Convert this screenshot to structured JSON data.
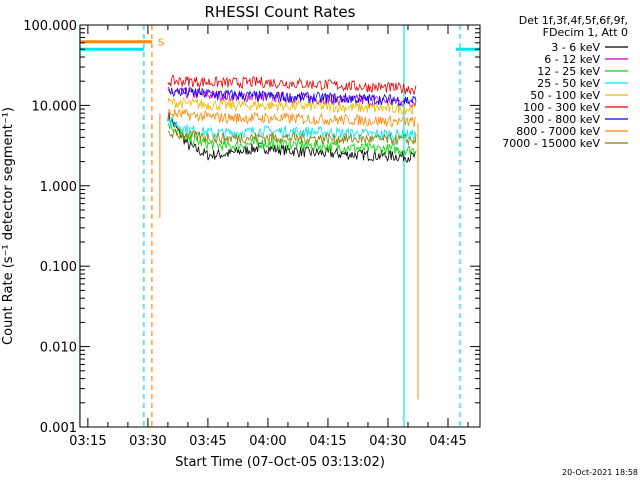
{
  "chart_data": {
    "type": "line",
    "title": "RHESSI Count Rates",
    "xlabel": "Start Time (07-Oct-05 03:13:02)",
    "ylabel": "Count Rate (s⁻¹ detector segment⁻¹)",
    "yscale": "log",
    "ylim": [
      0.001,
      100
    ],
    "xlim": [
      "03:13:02",
      "04:53:00"
    ],
    "x_ticks": [
      "03:15",
      "03:30",
      "03:45",
      "04:00",
      "04:15",
      "04:30",
      "04:45"
    ],
    "y_ticks": [
      "0.001",
      "0.010",
      "0.100",
      "1.000",
      "10.000",
      "100.000"
    ],
    "legend_header": [
      "Det 1f,3f,4f,5f,6f,9f,",
      "FDecim 1, Att 0"
    ],
    "legend_position": "right",
    "grid": false,
    "data_start": "03:35",
    "data_end": "04:37",
    "series": [
      {
        "name": "3 - 6 keV",
        "color": "#000000",
        "values": [
          7.5,
          3.2,
          2.4,
          2.5,
          3.0,
          2.6,
          2.4,
          2.3
        ],
        "x": [
          "03:35",
          "03:40",
          "03:45",
          "03:50",
          "03:58",
          "04:10",
          "04:25",
          "04:37"
        ]
      },
      {
        "name": "6 - 12 keV",
        "color": "#cc00cc",
        "values": [
          14.5,
          14.0,
          13.5,
          13.0,
          12.8,
          12.2,
          11.5,
          11.0
        ],
        "x": [
          "03:35",
          "03:40",
          "03:45",
          "03:50",
          "03:58",
          "04:10",
          "04:25",
          "04:37"
        ]
      },
      {
        "name": "12 - 25 keV",
        "color": "#00dd00",
        "values": [
          6.0,
          3.8,
          3.3,
          3.1,
          3.4,
          3.2,
          2.9,
          2.8
        ],
        "x": [
          "03:35",
          "03:40",
          "03:45",
          "03:50",
          "03:58",
          "04:10",
          "04:25",
          "04:37"
        ]
      },
      {
        "name": "25 - 50 keV",
        "color": "#00e5ee",
        "values": [
          6.5,
          5.0,
          4.6,
          4.5,
          4.8,
          4.7,
          4.4,
          4.3
        ],
        "x": [
          "03:35",
          "03:40",
          "03:45",
          "03:50",
          "03:58",
          "04:10",
          "04:25",
          "04:37"
        ]
      },
      {
        "name": "50 - 100 keV",
        "color": "#eebb00",
        "values": [
          11.0,
          10.5,
          10.2,
          10.0,
          10.0,
          9.8,
          9.3,
          9.0
        ],
        "x": [
          "03:35",
          "03:40",
          "03:45",
          "03:50",
          "03:58",
          "04:10",
          "04:25",
          "04:37"
        ]
      },
      {
        "name": "100 - 300 keV",
        "color": "#ee0000",
        "values": [
          20.0,
          20.0,
          19.5,
          19.0,
          19.5,
          18.5,
          17.0,
          16.0
        ],
        "x": [
          "03:35",
          "03:40",
          "03:45",
          "03:50",
          "03:58",
          "04:10",
          "04:25",
          "04:37"
        ]
      },
      {
        "name": "300 - 800 keV",
        "color": "#0000ff",
        "values": [
          15.0,
          14.5,
          14.0,
          13.5,
          13.0,
          12.5,
          12.0,
          11.5
        ],
        "x": [
          "03:35",
          "03:40",
          "03:45",
          "03:50",
          "03:58",
          "04:10",
          "04:25",
          "04:37"
        ]
      },
      {
        "name": "800 - 7000 keV",
        "color": "#ff8800",
        "values": [
          8.0,
          7.6,
          7.2,
          7.0,
          7.0,
          6.8,
          6.5,
          6.2
        ],
        "x": [
          "03:35",
          "03:40",
          "03:45",
          "03:50",
          "03:58",
          "04:10",
          "04:25",
          "04:37"
        ]
      },
      {
        "name": "7000 - 15000 keV",
        "color": "#808000",
        "values": [
          4.5,
          4.2,
          4.0,
          3.9,
          4.0,
          3.9,
          3.8,
          3.7
        ],
        "x": [
          "03:35",
          "03:40",
          "03:45",
          "03:50",
          "03:58",
          "04:10",
          "04:25",
          "04:37"
        ]
      }
    ],
    "event_flags": [
      {
        "color": "#00e5ee",
        "x_start": "03:13",
        "x_end": "03:29",
        "value": 50
      },
      {
        "color": "#ff8800",
        "x_start": "03:13",
        "x_end": "03:31",
        "value": 62
      },
      {
        "color": "#00e5ee",
        "x_start": "04:47",
        "x_end": "04:53",
        "value": 50
      }
    ],
    "saa_marker": "S",
    "vertical_markers": [
      {
        "x": "03:13",
        "color": "#00e5ee",
        "style": "solid"
      },
      {
        "x": "03:29",
        "color": "#00e5ee",
        "style": "dashed"
      },
      {
        "x": "03:31",
        "color": "#ff8800",
        "style": "dashed"
      },
      {
        "x": "04:34",
        "color": "#00e5ee",
        "style": "solid"
      },
      {
        "x": "04:48",
        "color": "#00e5ee",
        "style": "dashed"
      }
    ],
    "timestamp": "20-Oct-2021 18:58"
  }
}
